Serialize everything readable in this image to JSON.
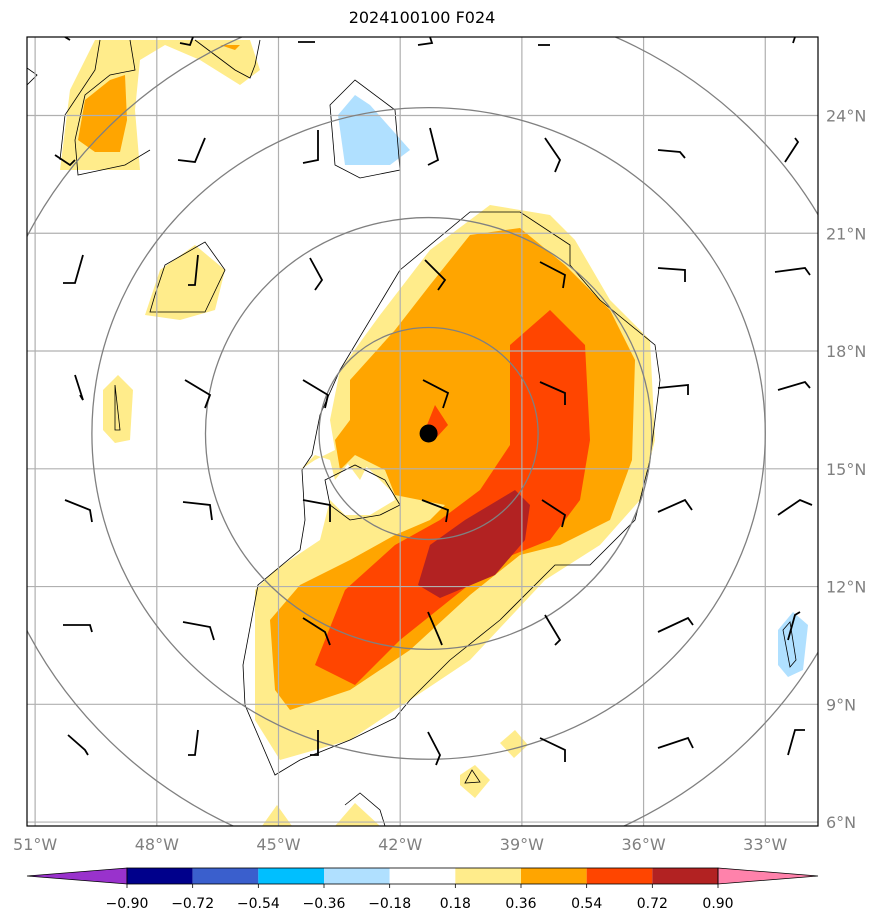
{
  "title": "2024100100 F024",
  "map": {
    "lon_range": [
      -51.2,
      -31.7
    ],
    "lat_range": [
      5.9,
      26.0
    ],
    "lon_ticks": [
      {
        "value": -51,
        "label": "51°W"
      },
      {
        "value": -48,
        "label": "48°W"
      },
      {
        "value": -45,
        "label": "45°W"
      },
      {
        "value": -42,
        "label": "42°W"
      },
      {
        "value": -39,
        "label": "39°W"
      },
      {
        "value": -36,
        "label": "36°W"
      },
      {
        "value": -33,
        "label": "33°W"
      }
    ],
    "lat_ticks": [
      {
        "value": 24,
        "label": "24°N"
      },
      {
        "value": 21,
        "label": "21°N"
      },
      {
        "value": 18,
        "label": "18°N"
      },
      {
        "value": 15,
        "label": "15°N"
      },
      {
        "value": 12,
        "label": "12°N"
      },
      {
        "value": 9,
        "label": "9°N"
      },
      {
        "value": 6,
        "label": "6°N"
      }
    ],
    "grid": true,
    "center": {
      "lon": -41.3,
      "lat": 15.9
    },
    "range_rings_deg": [
      2.7,
      5.5,
      8.3,
      11.1
    ],
    "colors": {
      "frame": "#000000",
      "grid": "#b0b0b0",
      "rings": "#808080",
      "tick_text": "#808080",
      "center_marker": "#000000"
    }
  },
  "colorbar": {
    "levels": [
      "-0.90",
      "-0.72",
      "-0.54",
      "-0.36",
      "-0.18",
      "0.18",
      "0.36",
      "0.54",
      "0.72",
      "0.90"
    ],
    "colors": [
      "#9932cc",
      "#00008b",
      "#3a5fcd",
      "#00bfff",
      "#b0e0ff",
      "#ffffff",
      "#ffec8b",
      "#ffa500",
      "#ff4500",
      "#b22222",
      "#ff82ab"
    ],
    "extend": "both"
  },
  "field_colors": {
    "c036": "#ffec8b",
    "c054": "#ffa500",
    "c072": "#ff4500",
    "c090": "#b22222",
    "cn018": "#b0e0ff"
  }
}
